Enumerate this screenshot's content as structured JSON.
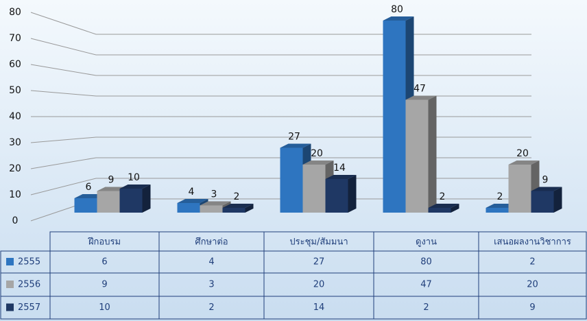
{
  "chart_data": {
    "type": "bar3d",
    "categories": [
      "ฝึกอบรม",
      "ศึกษาต่อ",
      "ประชุม/สัมมนา",
      "ดูงาน",
      "เสนอผลงานวิชาการ"
    ],
    "series": [
      {
        "name": "2555",
        "color": "#2e75c0",
        "values": [
          6,
          4,
          27,
          80,
          2
        ]
      },
      {
        "name": "2556",
        "color": "#a6a6a6",
        "values": [
          9,
          3,
          20,
          47,
          20
        ]
      },
      {
        "name": "2557",
        "color": "#1f3864",
        "values": [
          10,
          2,
          14,
          2,
          9
        ]
      }
    ],
    "ylim": [
      0,
      80
    ],
    "yticks": [
      0,
      10,
      20,
      30,
      40,
      50,
      60,
      70,
      80
    ],
    "grid": true
  }
}
